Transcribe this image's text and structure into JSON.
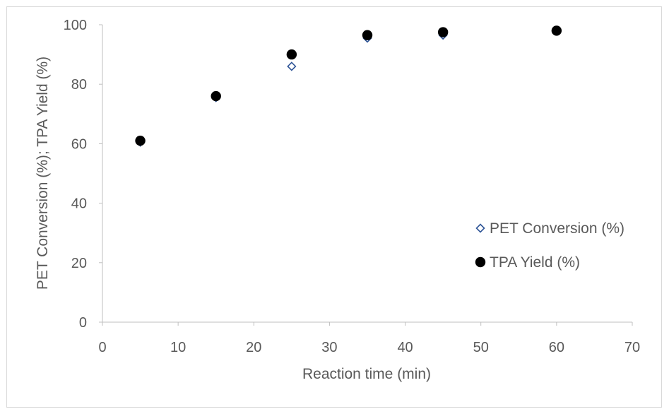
{
  "chart_data": {
    "type": "scatter",
    "title": "",
    "xlabel": "Reaction time (min)",
    "ylabel": "PET Conversion (%); TPA Yield (%)",
    "xlim": [
      0,
      70
    ],
    "ylim": [
      0,
      100
    ],
    "x_ticks": [
      0,
      10,
      20,
      30,
      40,
      50,
      60,
      70
    ],
    "y_ticks": [
      0,
      20,
      40,
      60,
      80,
      100
    ],
    "x_tick_labels": [
      "0",
      "10",
      "20",
      "30",
      "40",
      "50",
      "60",
      "70"
    ],
    "y_tick_labels": [
      "0",
      "20",
      "40",
      "60",
      "80",
      "100"
    ],
    "grid": false,
    "legend_position": "right",
    "series": [
      {
        "name": "PET Conversion (%)",
        "marker": "open-diamond",
        "color": "#2F5597",
        "x": [
          5,
          15,
          25,
          35,
          45,
          60
        ],
        "y": [
          60.5,
          75.5,
          86,
          95.5,
          96.5,
          98
        ]
      },
      {
        "name": "TPA Yield (%)",
        "marker": "filled-circle",
        "color": "#000000",
        "x": [
          5,
          15,
          25,
          35,
          45,
          60
        ],
        "y": [
          61,
          76,
          90,
          96.5,
          97.5,
          98
        ]
      }
    ]
  }
}
